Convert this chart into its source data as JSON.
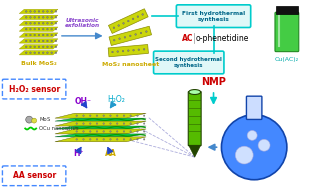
{
  "bg_color": "#ffffff",
  "text_ultrasonic": "Ultrasonic\nexfoliation",
  "text_bulk": "Bulk MoS₂",
  "text_nanosheet": "MoS₂ nanosheet",
  "text_first_hydro": "First hydrothermal\nsynthesis",
  "text_second_hydro": "Second hydrothermal\nsynthesis",
  "text_ac": "AC",
  "text_ophen": "o-phenetidine",
  "text_nmp": "NMP",
  "text_cuac2": "Cu(AC)₂",
  "text_h2o2_sensor": "H₂O₂ sensor",
  "text_aa_sensor": "AA sensor",
  "text_oh": "OH⁻",
  "text_h2o2": "H₂O₂",
  "text_hplus": "H⁺",
  "text_aa": "AA",
  "text_mo": "Mo",
  "text_s": "S",
  "text_ocu": "OCu nanowires",
  "mos2_yellow": "#c8d400",
  "mos2_atom_gray": "#888888",
  "mos2_atom_yellow": "#dddd00",
  "ocu_green": "#00cc00",
  "flask_blue": "#4488ff",
  "electrode_green": "#55bb00",
  "electrode_dark": "#224400",
  "electrode_ring": "#333333",
  "first_box_fill": "#e0f8f8",
  "first_box_edge": "#00cccc",
  "second_box_fill": "#e0f8f8",
  "second_box_edge": "#00cccc",
  "sensor_box_edge": "#4488ff",
  "vial_green": "#44cc44",
  "vial_cap": "#111111",
  "arrow_blue": "#4488cc",
  "arrow_cyan": "#00cccc",
  "oh_color": "#8800cc",
  "h2o2_color": "#00aacc",
  "hplus_color": "#8800cc",
  "aa_color": "#ccaa00",
  "nmp_color": "#cc0000",
  "ac_color": "#cc0000",
  "sensor_text_color": "#cc0000",
  "bulk_text_color": "#ccaa00",
  "ultrasonic_color": "#8844cc",
  "cuac_color": "#00aaaa"
}
